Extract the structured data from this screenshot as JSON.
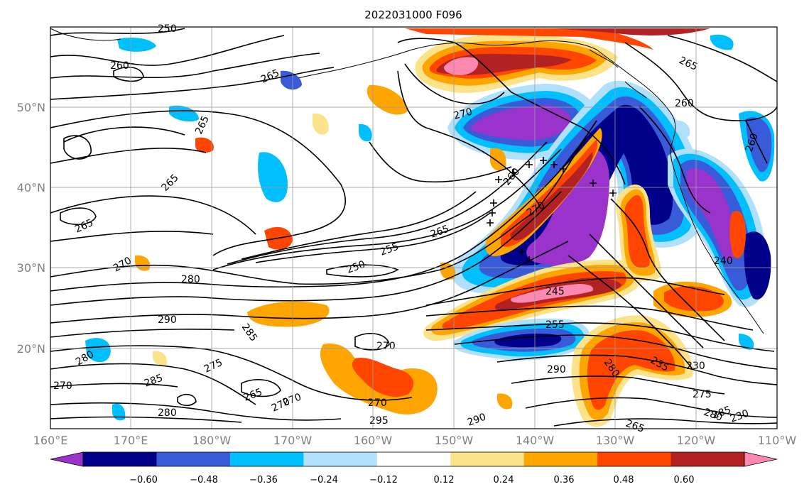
{
  "map": {
    "title": "2022031000 F096",
    "lat_labels": [
      "50°N",
      "40°N",
      "30°N",
      "20°N"
    ],
    "lon_labels": [
      "160°E",
      "170°E",
      "180°W",
      "170°W",
      "160°W",
      "150°W",
      "140°W",
      "130°W",
      "120°W",
      "110°W"
    ],
    "colorbar": {
      "ticks": [
        "−0.60",
        "−0.48",
        "−0.36",
        "−0.24",
        "−0.12",
        "0.12",
        "0.24",
        "0.36",
        "0.48",
        "0.60"
      ],
      "colors": [
        "#9933cc",
        "#00008b",
        "#3a5bd9",
        "#00bfff",
        "#b0e0fb",
        "#ffffff",
        "#fce38a",
        "#ffa500",
        "#ff4500",
        "#b22222",
        "#ff88b0"
      ]
    },
    "contour_labels": [
      "250",
      "260",
      "265",
      "265",
      "265",
      "265",
      "270",
      "270",
      "270",
      "280",
      "290",
      "285",
      "280",
      "270",
      "275",
      "285",
      "280",
      "270",
      "265",
      "270",
      "295",
      "260",
      "270",
      "265",
      "255",
      "250",
      "245",
      "255",
      "290",
      "290",
      "265",
      "260",
      "265",
      "260",
      "270",
      "240",
      "230",
      "235",
      "280",
      "275",
      "280",
      "285",
      "230"
    ]
  }
}
